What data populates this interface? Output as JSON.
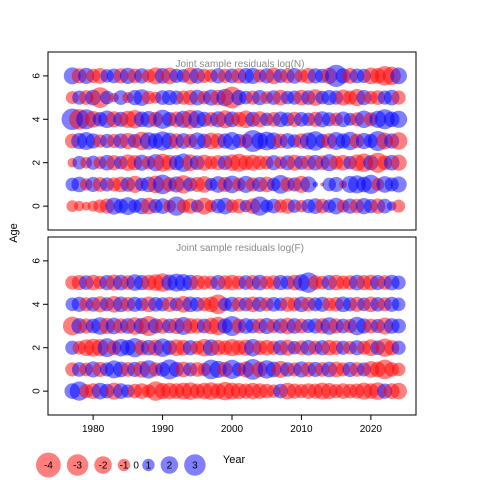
{
  "chart_data": {
    "type": "bubble",
    "shared_xlabel": "Year",
    "shared_ylabel": "Age",
    "xlim": [
      1973.5,
      2026.5
    ],
    "x_ticks": [
      1980,
      1990,
      2000,
      2010,
      2020
    ],
    "ylim": [
      -1.1,
      7.1
    ],
    "y_ticks": [
      0,
      2,
      4,
      6
    ],
    "years": [
      1977,
      2024
    ],
    "colors": {
      "negative": "#ff0000",
      "positive": "#0000ff",
      "bubble_opacity": 0.5
    },
    "panels": [
      {
        "title": "Joint sample residuals log(N)",
        "ages": [
          0,
          1,
          2,
          3,
          4,
          5,
          6
        ],
        "residuals_by_age": {
          "0": [
            -0.9,
            -0.7,
            -0.5,
            -0.8,
            -1.2,
            -1.5,
            1.9,
            1.4,
            2.1,
            1.2,
            1.7,
            -1.8,
            1.3,
            1.6,
            -1.1,
            2.4,
            -1.2,
            -1.5,
            1.1,
            -1.9,
            -1.0,
            1.4,
            1.8,
            -1.2,
            -1.4,
            1.0,
            -1.6,
            2.4,
            1.1,
            1.4,
            -1.2,
            -1.5,
            1.2,
            -1.0,
            1.3,
            1.6,
            -1.4,
            1.2,
            1.8,
            -1.1,
            1.5,
            -1.4,
            1.7,
            1.3,
            -1.5,
            1.4,
            0.6,
            -1.1
          ],
          "1": [
            1.2,
            1.6,
            -1.0,
            1.5,
            -1.4,
            1.3,
            -1.3,
            -1.6,
            1.4,
            -1.9,
            1.2,
            1.6,
            -2.0,
            2.5,
            -1.4,
            1.7,
            -2.2,
            1.3,
            -1.5,
            -1.8,
            1.1,
            1.8,
            -1.5,
            2.0,
            -1.2,
            1.9,
            -1.3,
            1.5,
            -1.6,
            1.2,
            2.3,
            -1.4,
            1.3,
            -1.9,
            1.7,
            0.2,
            -0.1,
            1.2,
            1.5,
            -0.4,
            1.9,
            2.1,
            1.6,
            2.4,
            -1.1,
            1.8,
            1.3,
            1.7
          ],
          "2": [
            -0.6,
            1.2,
            -0.9,
            1.3,
            -1.1,
            1.6,
            -1.5,
            1.2,
            -1.8,
            -1.5,
            1.7,
            -1.2,
            1.9,
            -2.1,
            -1.6,
            1.5,
            2.2,
            -1.8,
            1.4,
            -1.7,
            -1.2,
            -1.5,
            1.4,
            -1.8,
            -2.1,
            -1.5,
            -1.7,
            -1.4,
            -1.2,
            1.5,
            -1.1,
            1.5,
            -1.7,
            1.3,
            -1.5,
            1.6,
            -1.4,
            1.9,
            -1.3,
            -1.6,
            1.2,
            -1.8,
            -2.2,
            1.5,
            -2.6,
            -1.4,
            1.6,
            -1.7
          ],
          "3": [
            -1.4,
            1.7,
            2.1,
            1.5,
            -1.2,
            1.3,
            -1.3,
            1.5,
            -1.7,
            1.3,
            -2.2,
            2.0,
            1.6,
            2.4,
            1.8,
            -1.5,
            1.6,
            -1.3,
            1.9,
            1.4,
            -1.8,
            -1.6,
            1.5,
            2.1,
            1.3,
            -1.3,
            3.1,
            1.8,
            2.3,
            1.9,
            -1.4,
            1.6,
            1.2,
            -1.5,
            1.9,
            2.5,
            1.3,
            -1.6,
            2.1,
            1.5,
            2.2,
            -1.4,
            1.7,
            1.3,
            2.6,
            -1.8,
            1.5,
            -2.0
          ],
          "4": [
            3.0,
            -2.7,
            2.6,
            -1.8,
            1.4,
            2.0,
            -1.7,
            1.5,
            -1.9,
            -2.2,
            1.6,
            1.8,
            -1.5,
            2.4,
            1.4,
            -1.6,
            1.9,
            -2.3,
            2.1,
            1.5,
            -1.4,
            1.7,
            -2.1,
            1.6,
            -1.5,
            -2.0,
            1.5,
            -1.7,
            1.2,
            -1.4,
            1.6,
            1.3,
            -1.5,
            1.4,
            1.2,
            -1.5,
            1.7,
            1.3,
            -1.2,
            1.6,
            1.1,
            -1.3,
            2.0,
            -1.3,
            1.9,
            2.6,
            1.6,
            1.9
          ],
          "5": [
            -1.1,
            1.3,
            -1.4,
            1.6,
            -2.8,
            1.2,
            -0.6,
            1.4,
            -0.8,
            1.5,
            1.8,
            -1.2,
            -0.9,
            1.4,
            1.5,
            1.3,
            -1.3,
            -1.5,
            1.6,
            -1.2,
            1.7,
            -1.6,
            2.0,
            -3.1,
            1.5,
            1.2,
            -1.3,
            1.5,
            -1.1,
            1.4,
            -1.6,
            1.2,
            1.3,
            -1.6,
            1.4,
            -1.8,
            1.2,
            1.5,
            1.3,
            -1.7,
            -1.3,
            -1.9,
            1.5,
            -1.2,
            -1.4,
            1.3,
            1.6,
            -1.3
          ],
          "6": [
            1.9,
            -1.5,
            1.7,
            -1.3,
            -1.6,
            1.2,
            1.4,
            -1.5,
            1.7,
            -1.4,
            1.5,
            -1.2,
            -1.9,
            1.6,
            -1.8,
            1.3,
            1.2,
            -1.9,
            1.6,
            -1.3,
            -1.2,
            1.5,
            -1.3,
            1.4,
            -1.5,
            1.6,
            1.7,
            -1.2,
            1.5,
            -1.8,
            1.3,
            -1.4,
            1.6,
            -1.2,
            -1.6,
            1.5,
            1.3,
            -1.7,
            3.2,
            1.5,
            -1.6,
            1.4,
            1.3,
            -1.8,
            -1.6,
            -2.5,
            -2.2,
            1.8
          ]
        }
      },
      {
        "title": "Joint sample residuals log(F)",
        "ages": [
          0,
          1,
          2,
          3,
          4,
          5
        ],
        "residuals_by_age": {
          "0": [
            1.6,
            2.4,
            -1.3,
            -1.6,
            1.8,
            1.4,
            -1.9,
            1.6,
            1.2,
            -1.4,
            -1.6,
            -1.2,
            -2.5,
            -1.7,
            -1.8,
            -1.6,
            -1.9,
            -2.0,
            -1.5,
            -1.8,
            -2.0,
            -1.6,
            -2.2,
            -1.9,
            -1.7,
            -1.5,
            -1.8,
            -1.6,
            -1.4,
            -1.2,
            1.4,
            -1.8,
            -1.5,
            -1.3,
            -1.6,
            -1.5,
            -1.9,
            -1.7,
            -1.3,
            -1.6,
            -1.4,
            -1.5,
            -1.9,
            -1.6,
            -2.0,
            1.5,
            -1.6,
            -1.8
          ],
          "1": [
            -1.3,
            1.4,
            -1.2,
            1.7,
            -1.5,
            1.3,
            2.1,
            1.6,
            -1.4,
            1.5,
            -1.8,
            2.2,
            -1.3,
            1.4,
            2.6,
            1.5,
            -1.6,
            1.3,
            -1.4,
            -1.2,
            2.5,
            1.9,
            -1.5,
            2.4,
            1.3,
            -1.7,
            2.8,
            -1.6,
            2.2,
            1.6,
            -1.9,
            1.4,
            -1.3,
            1.7,
            -1.5,
            1.5,
            -1.4,
            1.6,
            -1.6,
            -1.3,
            1.5,
            -1.4,
            1.3,
            -1.8,
            -1.6,
            -2.5,
            -1.4,
            -1.2
          ],
          "2": [
            1.3,
            -1.2,
            -1.8,
            -2.1,
            -1.9,
            2.3,
            -1.4,
            2.0,
            1.6,
            2.4,
            -1.5,
            1.6,
            -1.7,
            2.2,
            1.4,
            -1.8,
            -1.6,
            1.5,
            -1.3,
            -2.0,
            1.8,
            -1.6,
            -1.4,
            -1.9,
            -1.5,
            -1.7,
            2.0,
            -1.4,
            -1.6,
            -1.3,
            1.5,
            -1.7,
            1.2,
            -1.4,
            1.6,
            -1.3,
            1.5,
            -1.6,
            -1.4,
            1.3,
            -1.2,
            1.5,
            -1.3,
            -1.8,
            1.4,
            -2.2,
            -1.5,
            1.3
          ],
          "3": [
            -2.3,
            1.6,
            -1.5,
            1.4,
            2.0,
            -1.7,
            1.8,
            -1.5,
            1.6,
            -2.0,
            1.7,
            -2.6,
            1.5,
            -1.6,
            1.4,
            -1.7,
            2.1,
            -1.6,
            -1.5,
            1.4,
            -1.8,
            -2.2,
            1.5,
            2.6,
            -1.4,
            1.6,
            1.4,
            -1.5,
            1.7,
            -1.3,
            1.5,
            -1.8,
            1.6,
            -1.4,
            1.3,
            1.5,
            -1.6,
            2.0,
            -1.5,
            1.4,
            -1.3,
            2.2,
            1.5,
            -1.4,
            1.3,
            -1.9,
            1.6,
            1.4
          ],
          "4": [
            1.2,
            1.5,
            -1.3,
            1.4,
            -1.7,
            1.3,
            -1.8,
            1.6,
            -1.4,
            1.5,
            1.2,
            -1.6,
            1.4,
            1.3,
            -1.5,
            1.2,
            -1.8,
            1.6,
            1.4,
            -1.3,
            -1.6,
            -2.5,
            1.2,
            1.5,
            -1.4,
            1.3,
            -1.6,
            1.5,
            -1.3,
            1.4,
            1.2,
            -1.5,
            -1.3,
            1.6,
            -1.4,
            1.3,
            1.5,
            -1.2,
            -1.4,
            1.6,
            1.3,
            -1.5,
            1.2,
            -1.6,
            1.4,
            -1.3,
            1.5,
            1.2
          ],
          "5": [
            -1.3,
            -1.5,
            1.4,
            -1.6,
            -1.2,
            1.5,
            -1.7,
            1.6,
            -1.4,
            1.8,
            1.5,
            -1.6,
            -1.8,
            -2.2,
            1.7,
            2.1,
            1.9,
            1.6,
            -1.5,
            -1.3,
            -1.2,
            1.5,
            -1.4,
            -1.6,
            -1.3,
            1.4,
            -1.5,
            1.6,
            -1.2,
            -1.4,
            1.5,
            1.3,
            -1.6,
            1.8,
            2.7,
            -1.4,
            -1.2,
            1.5,
            -1.6,
            -1.3,
            -1.4,
            1.6,
            -1.5,
            -1.6,
            1.5,
            -1.4,
            1.6,
            1.3
          ]
        }
      }
    ],
    "legend": {
      "placement": "bottom-left",
      "values": [
        -4,
        -3,
        -2,
        -1,
        0,
        1,
        2,
        3
      ]
    }
  }
}
